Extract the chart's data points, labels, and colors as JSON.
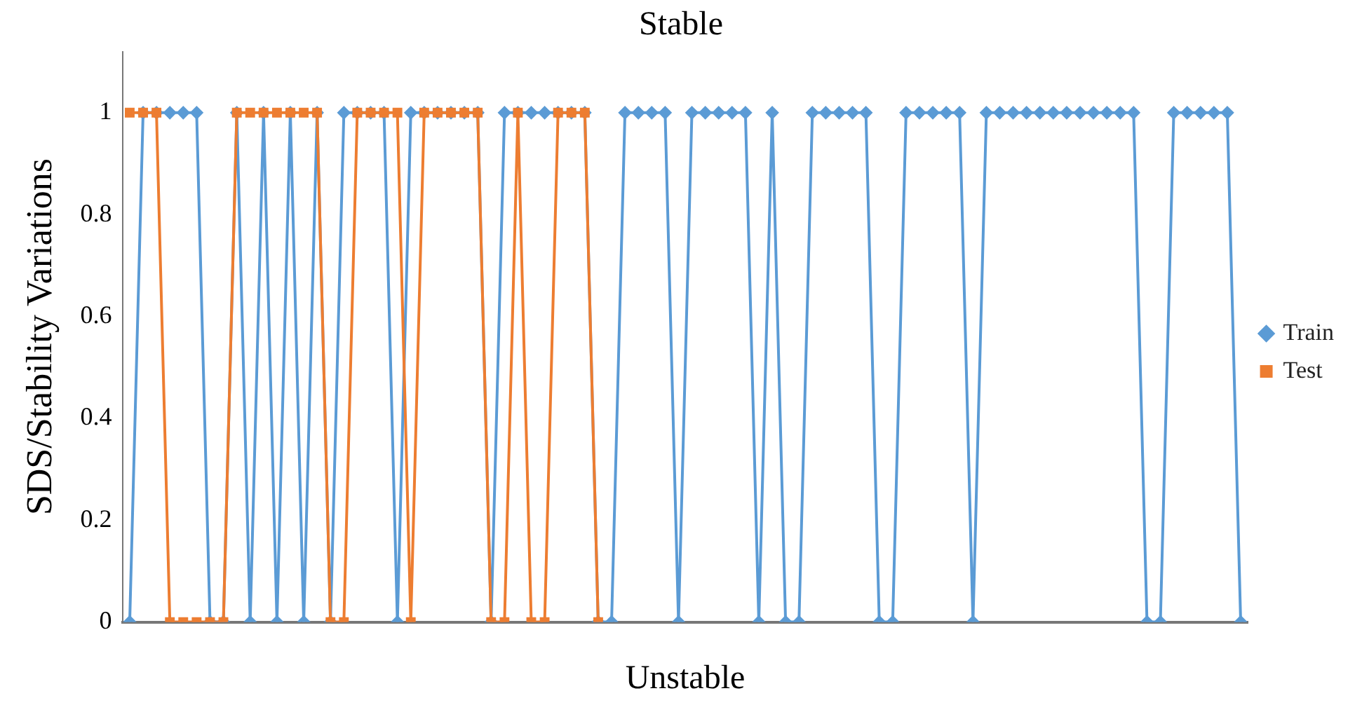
{
  "chart_data": {
    "type": "line",
    "title": "Stable",
    "xlabel": "Unstable",
    "ylabel": "SDS/Stability Variations",
    "categories": [
      null,
      null,
      null,
      null,
      null,
      null,
      null,
      null,
      null,
      null,
      null,
      null,
      null,
      null,
      null,
      null,
      null,
      null,
      null,
      null,
      null,
      null,
      null,
      null,
      null,
      null,
      null,
      null,
      null,
      null,
      null,
      null,
      null,
      null,
      null,
      null,
      null,
      null,
      null,
      null,
      null,
      null,
      null,
      null,
      null,
      null,
      null,
      null,
      null,
      null,
      null,
      null,
      null,
      null,
      null,
      null,
      null,
      null,
      null,
      null,
      null,
      null,
      null,
      null,
      null,
      null,
      null,
      null,
      null,
      null,
      null,
      null,
      null,
      null,
      null,
      null,
      null,
      null,
      null,
      null,
      null,
      null,
      null,
      null
    ],
    "series": [
      {
        "name": "Train",
        "color": "#5b9bd5",
        "marker": "diamond",
        "values": [
          0,
          1,
          1,
          1,
          1,
          1,
          0,
          0,
          1,
          0,
          1,
          0,
          1,
          0,
          1,
          0,
          1,
          1,
          1,
          1,
          0,
          1,
          1,
          1,
          1,
          1,
          1,
          0,
          1,
          1,
          1,
          1,
          1,
          1,
          1,
          0,
          0,
          1,
          1,
          1,
          1,
          0,
          1,
          1,
          1,
          1,
          1,
          0,
          1,
          0,
          0,
          1,
          1,
          1,
          1,
          1,
          0,
          0,
          1,
          1,
          1,
          1,
          1,
          0,
          1,
          1,
          1,
          1,
          1,
          1,
          1,
          1,
          1,
          1,
          1,
          1,
          0,
          0,
          1,
          1,
          1,
          1,
          1,
          0
        ]
      },
      {
        "name": "Test",
        "color": "#ed7d31",
        "marker": "square",
        "values": [
          1,
          1,
          1,
          0,
          0,
          0,
          0,
          0,
          1,
          1,
          1,
          1,
          1,
          1,
          1,
          0,
          0,
          1,
          1,
          1,
          1,
          0,
          1,
          1,
          1,
          1,
          1,
          0,
          0,
          1,
          0,
          0,
          1,
          1,
          1,
          0,
          null,
          null,
          null,
          null,
          null,
          null,
          null,
          null,
          null,
          null,
          null,
          null,
          null,
          null,
          null,
          null,
          null,
          null,
          null,
          null,
          null,
          null,
          null,
          null,
          null,
          null,
          null,
          null,
          null,
          null,
          null,
          null,
          null,
          null,
          null,
          null,
          null,
          null,
          null,
          null,
          null,
          null,
          null,
          null,
          null,
          null,
          null,
          null
        ]
      }
    ],
    "ylim": [
      0,
      1.12
    ],
    "yticks": [
      0,
      0.2,
      0.4,
      0.6,
      0.8,
      1
    ],
    "grid": false,
    "legend": "right"
  }
}
